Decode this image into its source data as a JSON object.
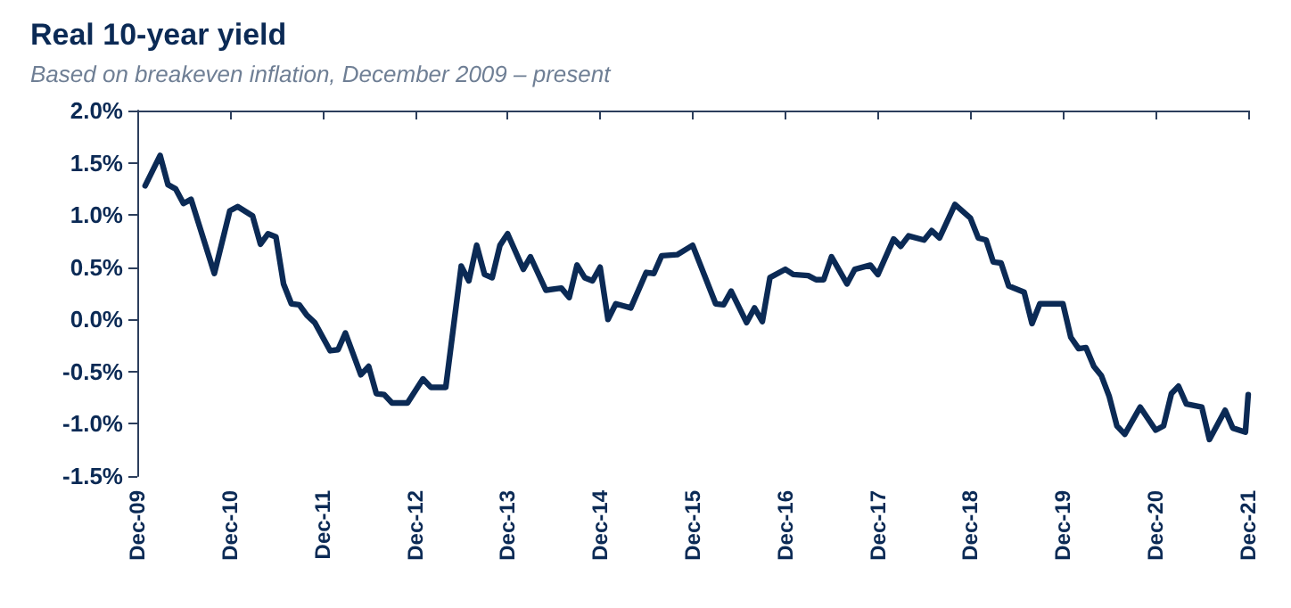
{
  "chart_data": {
    "type": "line",
    "title": "Real 10-year yield",
    "subtitle": "Based on breakeven inflation, December 2009 – present",
    "x": [
      "2010-01",
      "2010-03",
      "2010-04",
      "2010-05",
      "2010-06",
      "2010-07",
      "2010-10",
      "2010-12",
      "2011-01",
      "2011-03",
      "2011-04",
      "2011-05",
      "2011-06",
      "2011-07",
      "2011-08",
      "2011-09",
      "2011-10",
      "2011-11",
      "2012-01",
      "2012-02",
      "2012-03",
      "2012-05",
      "2012-06",
      "2012-07",
      "2012-08",
      "2012-09",
      "2012-11",
      "2013-01",
      "2013-02",
      "2013-04",
      "2013-06",
      "2013-07",
      "2013-08",
      "2013-09",
      "2013-10",
      "2013-11",
      "2013-12",
      "2014-02",
      "2014-03",
      "2014-05",
      "2014-07",
      "2014-08",
      "2014-09",
      "2014-10",
      "2014-11",
      "2014-12",
      "2015-01",
      "2015-02",
      "2015-04",
      "2015-06",
      "2015-07",
      "2015-08",
      "2015-10",
      "2015-12",
      "2016-03",
      "2016-04",
      "2016-05",
      "2016-07",
      "2016-08",
      "2016-09",
      "2016-10",
      "2016-12",
      "2017-01",
      "2017-03",
      "2017-04",
      "2017-05",
      "2017-06",
      "2017-08",
      "2017-09",
      "2017-11",
      "2017-12",
      "2018-02",
      "2018-03",
      "2018-04",
      "2018-06",
      "2018-07",
      "2018-08",
      "2018-10",
      "2018-12",
      "2019-01",
      "2019-02",
      "2019-03",
      "2019-04",
      "2019-05",
      "2019-07",
      "2019-08",
      "2019-09",
      "2019-12",
      "2020-01",
      "2020-02",
      "2020-03",
      "2020-04",
      "2020-05",
      "2020-06",
      "2020-07",
      "2020-08",
      "2020-10",
      "2020-12",
      "2021-01",
      "2021-02",
      "2021-03",
      "2021-04",
      "2021-06",
      "2021-07",
      "2021-09",
      "2021-10",
      "2021-11-20",
      "2021-12"
    ],
    "series": [
      {
        "color": "#0b2a55",
        "values": [
          1.28,
          1.57,
          1.29,
          1.25,
          1.11,
          1.15,
          0.44,
          1.04,
          1.08,
          0.99,
          0.72,
          0.82,
          0.79,
          0.34,
          0.15,
          0.14,
          0.04,
          -0.03,
          -0.3,
          -0.29,
          -0.13,
          -0.53,
          -0.45,
          -0.71,
          -0.72,
          -0.8,
          -0.8,
          -0.57,
          -0.65,
          -0.65,
          0.51,
          0.37,
          0.71,
          0.43,
          0.4,
          0.71,
          0.82,
          0.48,
          0.6,
          0.28,
          0.3,
          0.21,
          0.52,
          0.4,
          0.37,
          0.5,
          0.0,
          0.15,
          0.11,
          0.45,
          0.44,
          0.61,
          0.62,
          0.71,
          0.15,
          0.14,
          0.27,
          -0.03,
          0.11,
          -0.02,
          0.4,
          0.48,
          0.43,
          0.42,
          0.38,
          0.38,
          0.6,
          0.34,
          0.48,
          0.52,
          0.43,
          0.77,
          0.7,
          0.8,
          0.76,
          0.85,
          0.78,
          1.1,
          0.97,
          0.78,
          0.76,
          0.55,
          0.54,
          0.32,
          0.26,
          -0.04,
          0.15,
          0.15,
          -0.17,
          -0.28,
          -0.27,
          -0.45,
          -0.54,
          -0.74,
          -1.02,
          -1.1,
          -0.84,
          -1.06,
          -1.02,
          -0.71,
          -0.64,
          -0.81,
          -0.84,
          -1.15,
          -0.87,
          -1.04,
          -1.08,
          -0.72
        ]
      }
    ],
    "xlim": [
      "2009-12",
      "2021-12"
    ],
    "xticks": [
      {
        "value": "2009-12",
        "label": "Dec-09"
      },
      {
        "value": "2010-12",
        "label": "Dec-10"
      },
      {
        "value": "2011-12",
        "label": "Dec-11"
      },
      {
        "value": "2012-12",
        "label": "Dec-12"
      },
      {
        "value": "2013-12",
        "label": "Dec-13"
      },
      {
        "value": "2014-12",
        "label": "Dec-14"
      },
      {
        "value": "2015-12",
        "label": "Dec-15"
      },
      {
        "value": "2016-12",
        "label": "Dec-16"
      },
      {
        "value": "2017-12",
        "label": "Dec-17"
      },
      {
        "value": "2018-12",
        "label": "Dec-18"
      },
      {
        "value": "2019-12",
        "label": "Dec-19"
      },
      {
        "value": "2020-12",
        "label": "Dec-20"
      },
      {
        "value": "2021-12",
        "label": "Dec-21"
      }
    ],
    "ylim": [
      -1.5,
      2.0
    ],
    "yticks": [
      {
        "value": -1.5,
        "label": "-1.5%"
      },
      {
        "value": -1.0,
        "label": "-1.0%"
      },
      {
        "value": -0.5,
        "label": "-0.5%"
      },
      {
        "value": 0,
        "label": "0.0%"
      },
      {
        "value": 0.5,
        "label": "0.5%"
      },
      {
        "value": 1.0,
        "label": "1.0%"
      },
      {
        "value": 1.5,
        "label": "1.5%"
      },
      {
        "value": 2.0,
        "label": "2.0%"
      }
    ],
    "grid": false,
    "marker": "none",
    "line_style": "solid"
  }
}
